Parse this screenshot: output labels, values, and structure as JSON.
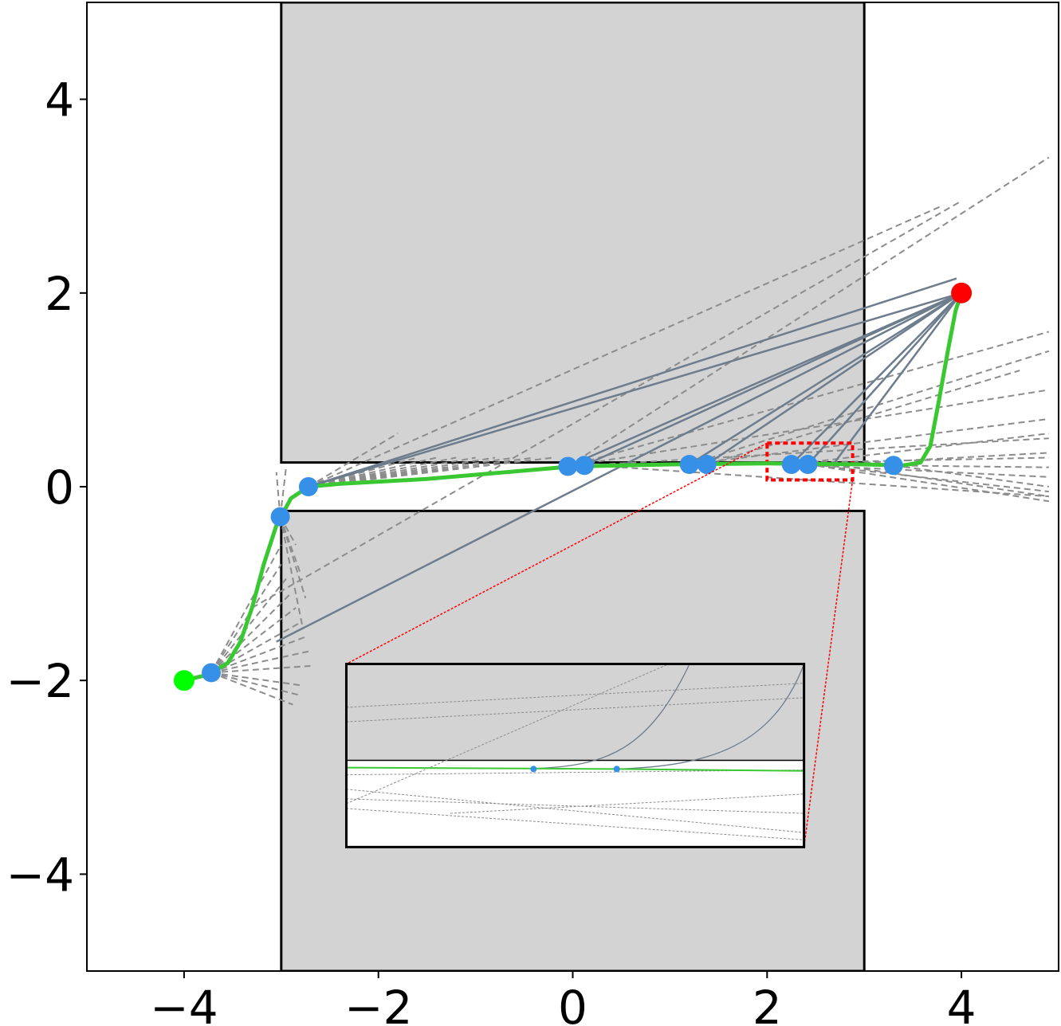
{
  "chart_data": {
    "type": "scatter",
    "title": "",
    "xlabel": "",
    "ylabel": "",
    "xlim": [
      -5,
      5
    ],
    "ylim": [
      -5,
      5
    ],
    "grid": false,
    "x_ticks": [
      {
        "value": -4,
        "label": "−4"
      },
      {
        "value": -2,
        "label": "−2"
      },
      {
        "value": 0,
        "label": "0"
      },
      {
        "value": 2,
        "label": "2"
      },
      {
        "value": 4,
        "label": "4"
      }
    ],
    "y_ticks": [
      {
        "value": 4,
        "label": "4"
      },
      {
        "value": 2,
        "label": "2"
      },
      {
        "value": 0,
        "label": "0"
      },
      {
        "value": -2,
        "label": "−2"
      },
      {
        "value": -4,
        "label": "−4"
      }
    ],
    "obstacles": [
      {
        "x": [
          -3,
          3
        ],
        "y": [
          0.25,
          5
        ]
      },
      {
        "x": [
          -3,
          3
        ],
        "y": [
          -5,
          -0.25
        ]
      }
    ],
    "start": {
      "x": -4,
      "y": -2,
      "color": "#00ff00"
    },
    "goal": {
      "x": 4,
      "y": 2,
      "color": "#ff0000"
    },
    "waypoints": [
      {
        "x": -3.72,
        "y": -1.92
      },
      {
        "x": -3.01,
        "y": -0.31
      },
      {
        "x": -2.72,
        "y": 0.0
      },
      {
        "x": -0.05,
        "y": 0.21
      },
      {
        "x": 0.12,
        "y": 0.22
      },
      {
        "x": 1.2,
        "y": 0.23
      },
      {
        "x": 1.38,
        "y": 0.23
      },
      {
        "x": 2.25,
        "y": 0.23
      },
      {
        "x": 2.42,
        "y": 0.23
      },
      {
        "x": 3.3,
        "y": 0.22
      }
    ],
    "path": [
      [
        -4.0,
        -2.0
      ],
      [
        -3.75,
        -1.94
      ],
      [
        -3.55,
        -1.82
      ],
      [
        -3.42,
        -1.6
      ],
      [
        -3.3,
        -1.25
      ],
      [
        -3.18,
        -0.8
      ],
      [
        -3.05,
        -0.4
      ],
      [
        -2.9,
        -0.12
      ],
      [
        -2.72,
        0.0
      ],
      [
        -2.4,
        0.03
      ],
      [
        -1.5,
        0.08
      ],
      [
        0.0,
        0.21
      ],
      [
        1.0,
        0.23
      ],
      [
        2.0,
        0.24
      ],
      [
        3.0,
        0.23
      ],
      [
        3.4,
        0.22
      ],
      [
        3.58,
        0.25
      ],
      [
        3.68,
        0.42
      ],
      [
        3.77,
        0.9
      ],
      [
        3.86,
        1.4
      ],
      [
        3.94,
        1.82
      ],
      [
        4.0,
        2.0
      ]
    ],
    "colors": {
      "path": "#39c832",
      "waypoint": "#3690e8",
      "solid_ray": "#6d7d8d",
      "dashed_ray": "#8c8c8c",
      "obstacle": "#d3d3d3",
      "zoom_box": "#ff0000"
    },
    "solid_rays": [
      [
        [
          -2.72,
          0.0
        ],
        [
          4.0,
          2.0
        ]
      ],
      [
        [
          -2.72,
          0.0
        ],
        [
          3.95,
          2.15
        ]
      ],
      [
        [
          -0.05,
          0.21
        ],
        [
          4.0,
          2.0
        ]
      ],
      [
        [
          0.12,
          0.22
        ],
        [
          4.0,
          2.0
        ]
      ],
      [
        [
          1.2,
          0.23
        ],
        [
          4.0,
          2.0
        ]
      ],
      [
        [
          1.38,
          0.23
        ],
        [
          4.0,
          2.0
        ]
      ],
      [
        [
          2.25,
          0.23
        ],
        [
          4.0,
          2.0
        ]
      ],
      [
        [
          2.42,
          0.23
        ],
        [
          4.0,
          2.0
        ]
      ],
      [
        [
          2.68,
          0.23
        ],
        [
          4.0,
          2.0
        ]
      ],
      [
        [
          -3.05,
          -1.6
        ],
        [
          4.0,
          2.0
        ]
      ]
    ],
    "dashed_rays": [
      [
        [
          -3.72,
          -1.92
        ],
        [
          -2.7,
          -1.85
        ]
      ],
      [
        [
          -3.72,
          -1.92
        ],
        [
          -2.72,
          -1.7
        ]
      ],
      [
        [
          -3.72,
          -1.92
        ],
        [
          -2.75,
          -1.55
        ]
      ],
      [
        [
          -3.72,
          -1.92
        ],
        [
          -2.8,
          -1.4
        ]
      ],
      [
        [
          -3.72,
          -1.92
        ],
        [
          -2.85,
          -1.25
        ]
      ],
      [
        [
          -3.72,
          -1.92
        ],
        [
          -2.9,
          -1.1
        ]
      ],
      [
        [
          -3.72,
          -1.92
        ],
        [
          -2.95,
          -0.95
        ]
      ],
      [
        [
          -3.72,
          -1.92
        ],
        [
          -3.0,
          -0.8
        ]
      ],
      [
        [
          -3.72,
          -1.92
        ],
        [
          -2.8,
          -2.05
        ]
      ],
      [
        [
          -3.72,
          -1.92
        ],
        [
          -2.82,
          -2.15
        ]
      ],
      [
        [
          -3.72,
          -1.92
        ],
        [
          -2.88,
          -2.25
        ]
      ],
      [
        [
          -3.72,
          -1.92
        ],
        [
          -3.0,
          -0.6
        ]
      ],
      [
        [
          -3.01,
          -0.31
        ],
        [
          -3.05,
          0.15
        ]
      ],
      [
        [
          -3.01,
          -0.31
        ],
        [
          -2.95,
          0.2
        ]
      ],
      [
        [
          -3.01,
          -0.31
        ],
        [
          -2.85,
          -0.6
        ]
      ],
      [
        [
          -3.01,
          -0.31
        ],
        [
          -2.8,
          -0.9
        ]
      ],
      [
        [
          -3.01,
          -0.31
        ],
        [
          -2.75,
          -1.15
        ]
      ],
      [
        [
          -3.01,
          -0.31
        ],
        [
          -2.78,
          -1.45
        ]
      ],
      [
        [
          -2.72,
          0.0
        ],
        [
          -1.8,
          0.55
        ]
      ],
      [
        [
          -2.72,
          0.0
        ],
        [
          -1.6,
          0.3
        ]
      ],
      [
        [
          -2.72,
          0.0
        ],
        [
          -1.4,
          0.3
        ]
      ],
      [
        [
          -2.72,
          0.0
        ],
        [
          -1.2,
          0.3
        ]
      ],
      [
        [
          -2.72,
          0.0
        ],
        [
          -1.0,
          0.3
        ]
      ],
      [
        [
          -2.72,
          0.0
        ],
        [
          -0.8,
          0.3
        ]
      ],
      [
        [
          -2.72,
          0.0
        ],
        [
          -0.6,
          0.3
        ]
      ],
      [
        [
          -2.72,
          0.0
        ],
        [
          -0.4,
          0.3
        ]
      ],
      [
        [
          -2.72,
          0.0
        ],
        [
          -0.2,
          0.3
        ]
      ],
      [
        [
          -2.72,
          0.0
        ],
        [
          3.8,
          2.9
        ]
      ],
      [
        [
          -3.3,
          -1.25
        ],
        [
          4.0,
          2.95
        ]
      ],
      [
        [
          -0.05,
          0.21
        ],
        [
          4.9,
          3.4
        ]
      ],
      [
        [
          -0.05,
          0.21
        ],
        [
          4.9,
          1.6
        ]
      ],
      [
        [
          -0.05,
          0.21
        ],
        [
          4.9,
          1.0
        ]
      ],
      [
        [
          -0.05,
          0.21
        ],
        [
          4.9,
          0.5
        ]
      ],
      [
        [
          0.5,
          0.2
        ],
        [
          4.9,
          -0.1
        ]
      ],
      [
        [
          1.2,
          0.23
        ],
        [
          4.9,
          1.4
        ]
      ],
      [
        [
          1.2,
          0.23
        ],
        [
          4.9,
          0.7
        ]
      ],
      [
        [
          1.38,
          0.23
        ],
        [
          4.9,
          0.3
        ]
      ],
      [
        [
          1.38,
          0.23
        ],
        [
          4.6,
          1.2
        ]
      ],
      [
        [
          2.25,
          0.23
        ],
        [
          4.9,
          0.55
        ]
      ],
      [
        [
          2.25,
          0.23
        ],
        [
          4.9,
          0.1
        ]
      ],
      [
        [
          2.42,
          0.23
        ],
        [
          4.9,
          0.2
        ]
      ],
      [
        [
          2.42,
          0.23
        ],
        [
          4.9,
          -0.05
        ]
      ],
      [
        [
          2.42,
          0.23
        ],
        [
          4.9,
          -0.15
        ]
      ],
      [
        [
          2.68,
          0.23
        ],
        [
          4.9,
          0.35
        ]
      ],
      [
        [
          2.68,
          0.23
        ],
        [
          4.9,
          -0.1
        ]
      ],
      [
        [
          3.3,
          0.22
        ],
        [
          4.9,
          0.0
        ]
      ]
    ],
    "zoom_region": {
      "x": [
        2.0,
        2.88
      ],
      "y": [
        0.07,
        0.45
      ]
    },
    "inset": {
      "position_x": [
        -2.33,
        2.38
      ],
      "position_y": [
        -3.72,
        -1.83
      ],
      "x": [
        2.0,
        2.88
      ],
      "y": [
        0.07,
        0.45
      ],
      "wall_y": 0.25,
      "waypoints": [
        {
          "x": 2.36,
          "y": 0.232
        },
        {
          "x": 2.52,
          "y": 0.232
        }
      ],
      "path": [
        [
          2.0,
          0.235
        ],
        [
          2.36,
          0.233
        ],
        [
          2.52,
          0.232
        ],
        [
          2.88,
          0.228
        ]
      ],
      "solid_curves": [
        [
          [
            2.36,
            0.233
          ],
          [
            2.5,
            0.238
          ],
          [
            2.58,
            0.27
          ],
          [
            2.66,
            0.45
          ]
        ],
        [
          [
            2.52,
            0.232
          ],
          [
            2.7,
            0.238
          ],
          [
            2.82,
            0.28
          ],
          [
            2.88,
            0.45
          ]
        ]
      ],
      "dashed_rays": [
        [
          [
            2.0,
            0.33
          ],
          [
            2.88,
            0.38
          ]
        ],
        [
          [
            2.0,
            0.36
          ],
          [
            2.88,
            0.41
          ]
        ],
        [
          [
            2.0,
            0.16
          ],
          [
            2.62,
            0.45
          ]
        ],
        [
          [
            2.0,
            0.19
          ],
          [
            2.88,
            0.1
          ]
        ],
        [
          [
            2.0,
            0.17
          ],
          [
            2.88,
            0.14
          ]
        ],
        [
          [
            2.0,
            0.15
          ],
          [
            2.88,
            0.085
          ]
        ],
        [
          [
            2.2,
            0.14
          ],
          [
            2.88,
            0.18
          ]
        ],
        [
          [
            2.0,
            0.22
          ],
          [
            2.88,
            0.23
          ]
        ]
      ]
    }
  }
}
